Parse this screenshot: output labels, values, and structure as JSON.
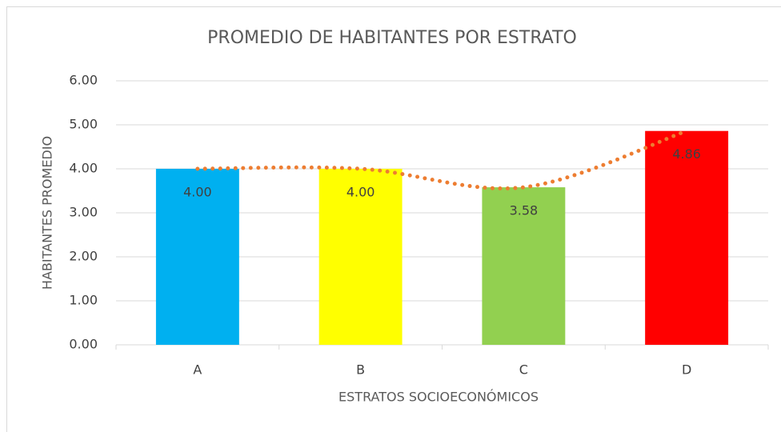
{
  "chart_data": {
    "type": "bar",
    "title": "PROMEDIO DE HABITANTES POR ESTRATO",
    "x_label": "ESTRATOS SOCIOECONÓMICOS",
    "y_label": "HABITANTES PROMEDIO",
    "categories": [
      "A",
      "B",
      "C",
      "D"
    ],
    "values": [
      4.0,
      4.0,
      3.58,
      4.86
    ],
    "value_labels": [
      "4.00",
      "4.00",
      "3.58",
      "4.86"
    ],
    "colors": [
      "#00b0f0",
      "#ffff00",
      "#92d050",
      "#ff0000"
    ],
    "line_color": "#ed7d31",
    "ylim": [
      0,
      6
    ],
    "yticks": [
      {
        "value": 0,
        "label": "0.00"
      },
      {
        "value": 1,
        "label": "1.00"
      },
      {
        "value": 2,
        "label": "2.00"
      },
      {
        "value": 3,
        "label": "3.00"
      },
      {
        "value": 4,
        "label": "4.00"
      },
      {
        "value": 5,
        "label": "5.00"
      },
      {
        "value": 6,
        "label": "6.00"
      }
    ],
    "grid": true
  }
}
